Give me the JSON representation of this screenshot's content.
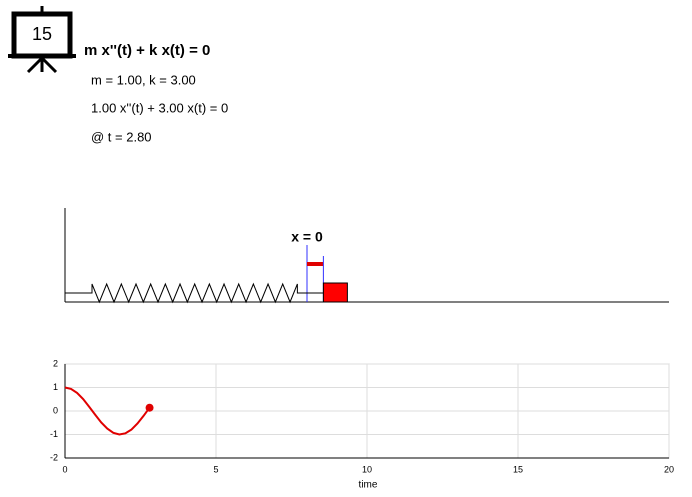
{
  "icon_label": "15",
  "header": {
    "equation": "m x''(t) + k x(t) = 0",
    "parameters": "m = 1.00, k = 3.00",
    "substituted": "1.00 x''(t) + 3.00 x(t) = 0",
    "time": "@ t = 2.80"
  },
  "spring": {
    "origin_label": "x = 0"
  },
  "chart_data": {
    "type": "line",
    "x_label": "time",
    "x": [
      0,
      0.2,
      0.4,
      0.6,
      0.8,
      1.0,
      1.2,
      1.4,
      1.6,
      1.8,
      2.0,
      2.2,
      2.4,
      2.6,
      2.8
    ],
    "series": [
      {
        "color": "#e00000",
        "values": [
          1,
          0.94,
          0.77,
          0.51,
          0.18,
          -0.16,
          -0.49,
          -0.75,
          -0.93,
          -1.0,
          -0.95,
          -0.79,
          -0.53,
          -0.21,
          0.14
        ]
      }
    ],
    "xlim": [
      0,
      20
    ],
    "ylim": [
      -2,
      2
    ],
    "xticks": [
      0,
      5,
      10,
      15,
      20
    ],
    "yticks": [
      -2,
      -1,
      0,
      1,
      2
    ],
    "grid": true
  }
}
